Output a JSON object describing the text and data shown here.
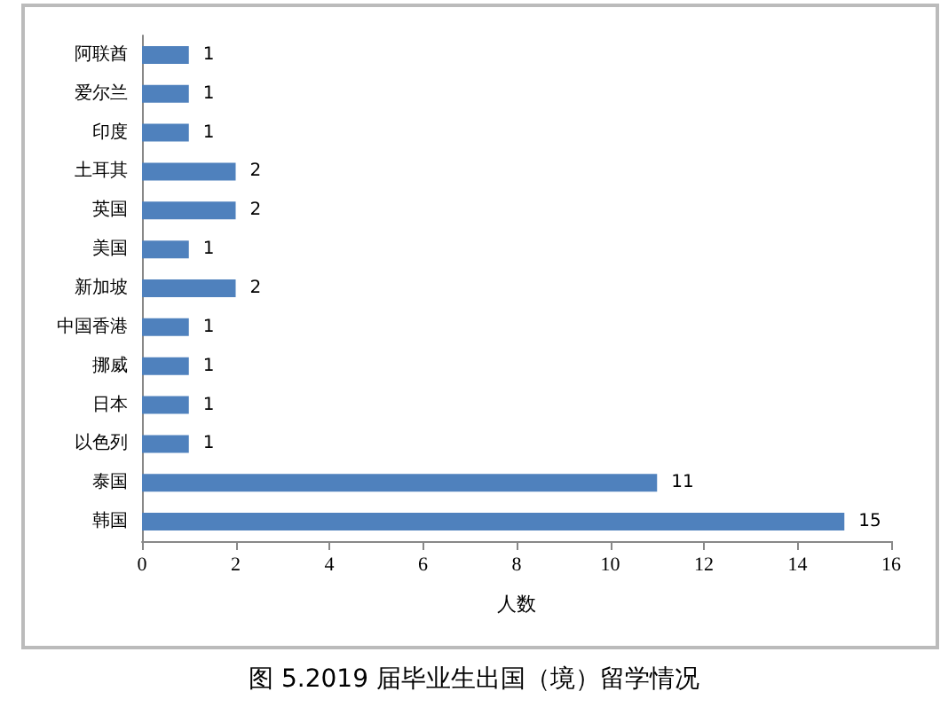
{
  "chart_data": {
    "type": "bar",
    "orientation": "horizontal",
    "title": "图 5.2019 届毕业生出国（境）留学情况",
    "xlabel": "人数",
    "categories": [
      "阿联酋",
      "爱尔兰",
      "印度",
      "土耳其",
      "英国",
      "美国",
      "新加坡",
      "中国香港",
      "挪威",
      "日本",
      "以色列",
      "泰国",
      "韩国"
    ],
    "values": [
      1,
      1,
      1,
      2,
      2,
      1,
      2,
      1,
      1,
      1,
      1,
      11,
      15
    ],
    "color": "#4f81bd",
    "xlim": [
      0,
      16
    ],
    "xticks": [
      0,
      2,
      4,
      6,
      8,
      10,
      12,
      14,
      16
    ],
    "data_labels": true,
    "grid": false
  }
}
